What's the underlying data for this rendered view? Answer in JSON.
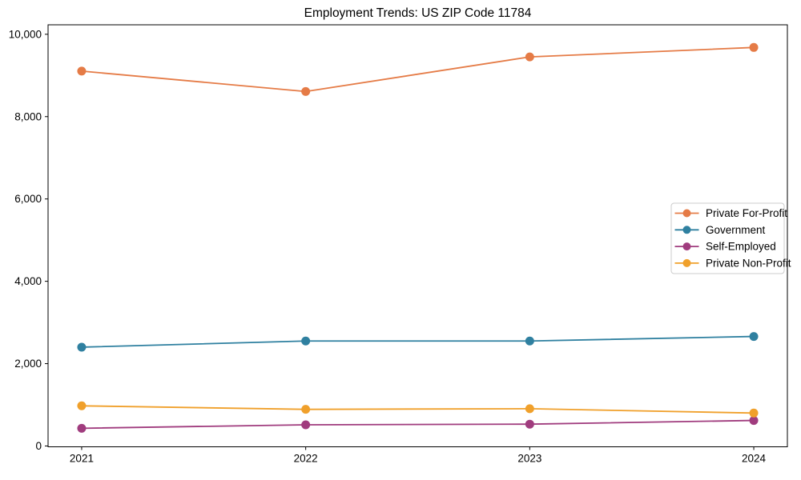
{
  "title": "Employment Trends: US ZIP Code 11784",
  "chart_data": {
    "type": "line",
    "title": "Employment Trends: US ZIP Code 11784",
    "x": [
      2021,
      2022,
      2023,
      2024
    ],
    "x_tick_labels": [
      "2021",
      "2022",
      "2023",
      "2024"
    ],
    "series": [
      {
        "name": "Private For-Profit",
        "color": "#e57b46",
        "values": [
          9105,
          8610,
          9450,
          9680
        ]
      },
      {
        "name": "Government",
        "color": "#2f80a0",
        "values": [
          2400,
          2550,
          2550,
          2660
        ]
      },
      {
        "name": "Self-Employed",
        "color": "#a03c7e",
        "values": [
          430,
          515,
          530,
          620
        ]
      },
      {
        "name": "Private Non-Profit",
        "color": "#f0a02b",
        "values": [
          975,
          890,
          905,
          800
        ]
      }
    ],
    "xlabel": "",
    "ylabel": "",
    "yticks": [
      0,
      2000,
      4000,
      6000,
      8000,
      10000
    ],
    "ytick_labels": [
      "0",
      "2,000",
      "4,000",
      "6,000",
      "8,000",
      "10,000"
    ],
    "xlim": [
      2020.85,
      2024.15
    ],
    "ylim": [
      -20,
      10230
    ],
    "grid": false,
    "legend_position": "center-right",
    "marker": "circle",
    "line_width": 1.8,
    "marker_radius": 5.5,
    "background_color": "#ffffff",
    "axis_color": "#000000",
    "legend_border_color": "#cccccc"
  }
}
